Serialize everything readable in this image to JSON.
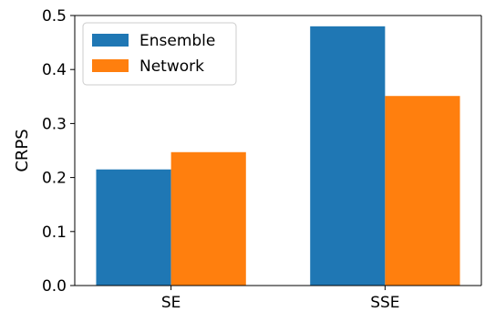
{
  "chart_data": {
    "type": "bar",
    "title": "",
    "xlabel": "",
    "ylabel": "CRPS",
    "categories": [
      "SE",
      "SSE"
    ],
    "series": [
      {
        "name": "Ensemble",
        "color": "#1f77b4",
        "values": [
          0.215,
          0.48
        ]
      },
      {
        "name": "Network",
        "color": "#ff7f0e",
        "values": [
          0.247,
          0.351
        ]
      }
    ],
    "ylim": [
      0.0,
      0.5
    ],
    "yticks": [
      "0.0",
      "0.1",
      "0.2",
      "0.3",
      "0.4",
      "0.5"
    ],
    "grid": false,
    "legend_position": "top-left"
  }
}
